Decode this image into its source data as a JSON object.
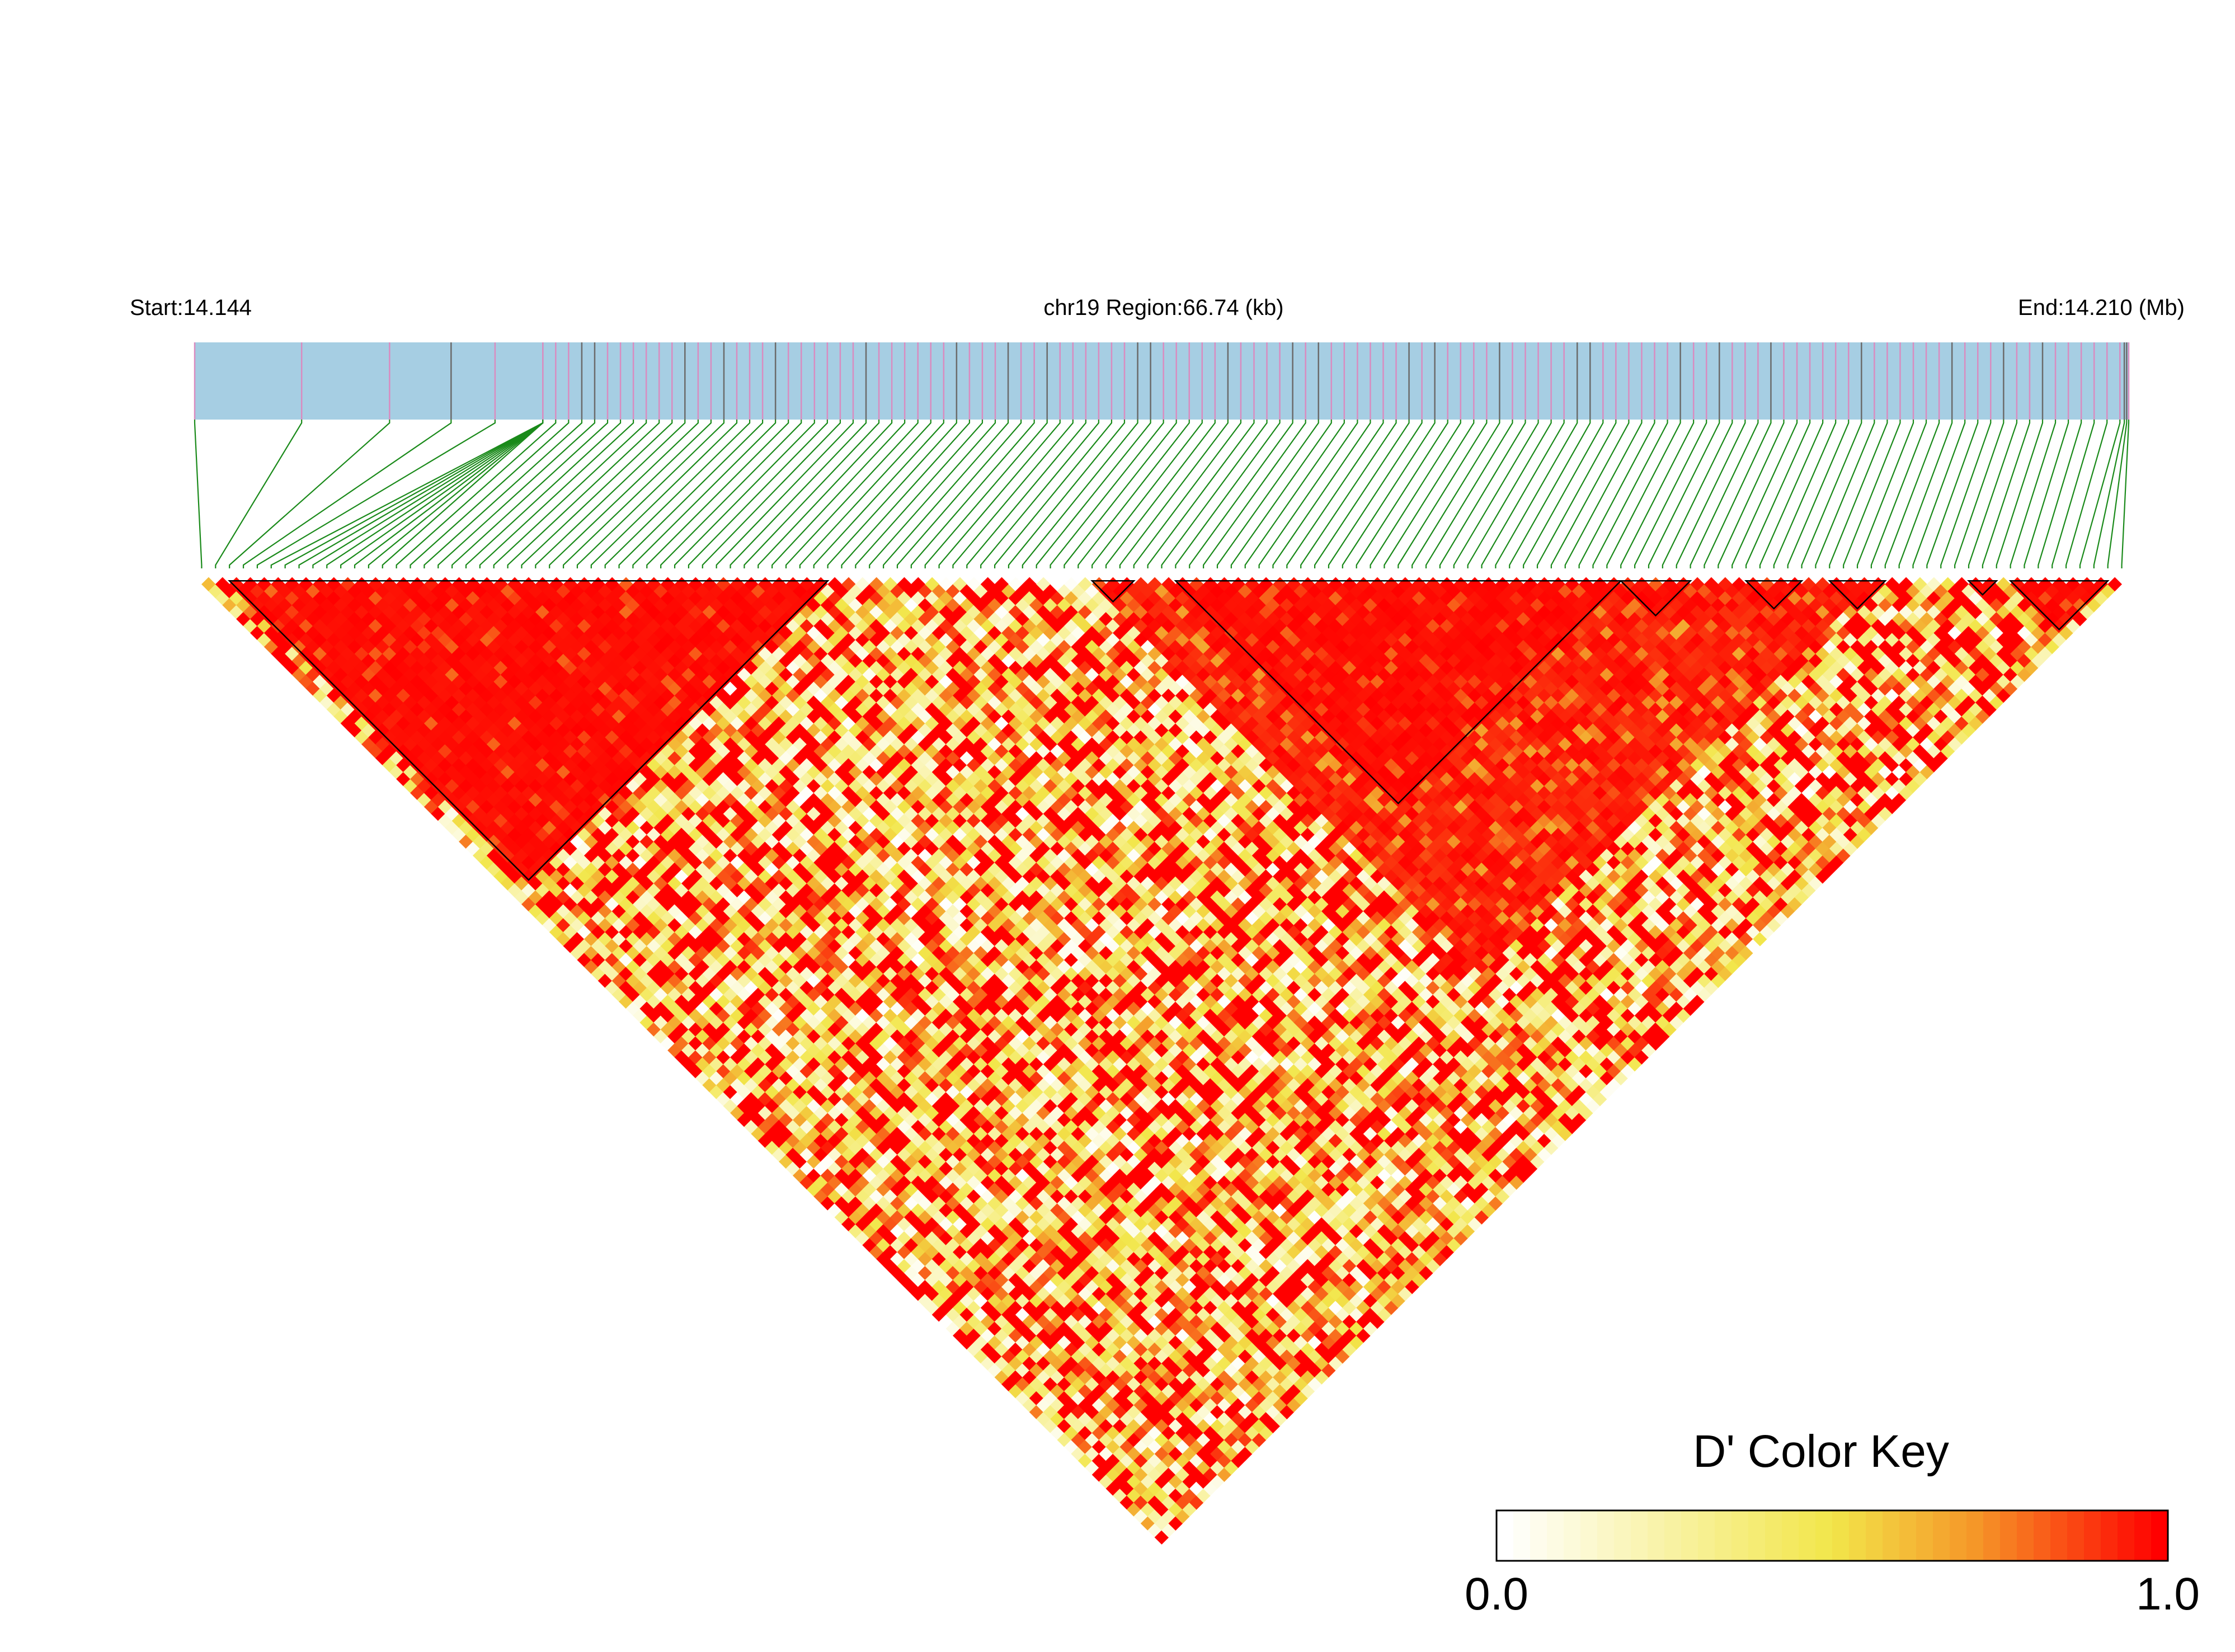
{
  "header": {
    "start_label": "Start:14.144",
    "region_label": "chr19 Region:66.74 (kb)",
    "end_label": "End:14.210 (Mb)"
  },
  "colors": {
    "track_fill": "#a6cee3",
    "snp_tick_pink": "#d98cc0",
    "snp_tick_dark": "#6b6b6b",
    "connector_green": "#1a8a1a",
    "ld_low": "#ffffff",
    "ld_mid": "#f2e64a",
    "ld_high": "#ff0000",
    "block_outline": "#000000"
  },
  "chart_data": {
    "type": "heatmap",
    "title": "",
    "xlabel": "",
    "ylabel": "",
    "chromosome": "chr19",
    "region_start_mb": 14.144,
    "region_end_mb": 14.21,
    "region_size_kb": 66.74,
    "n_snps": 139,
    "snp_positions_mb": [
      14.144,
      14.14765,
      14.15065,
      14.15275,
      14.15425,
      14.15588,
      14.15588,
      14.15588,
      14.15588,
      14.15588,
      14.15588,
      14.15588,
      14.15588,
      14.15588,
      14.15632,
      14.15676,
      14.15721,
      14.15765,
      14.15809,
      14.15853,
      14.15897,
      14.15941,
      14.15985,
      14.16029,
      14.16073,
      14.16118,
      14.16162,
      14.16206,
      14.1625,
      14.16294,
      14.16338,
      14.16382,
      14.16426,
      14.1647,
      14.16515,
      14.16559,
      14.16603,
      14.16647,
      14.16691,
      14.16735,
      14.16779,
      14.16823,
      14.16868,
      14.16912,
      14.16956,
      14.17,
      14.17044,
      14.17088,
      14.17132,
      14.17176,
      14.1722,
      14.17265,
      14.17309,
      14.17353,
      14.17397,
      14.17441,
      14.17485,
      14.17529,
      14.17573,
      14.17618,
      14.17662,
      14.17706,
      14.1775,
      14.17794,
      14.17838,
      14.17882,
      14.17926,
      14.1797,
      14.18015,
      14.18059,
      14.18103,
      14.18147,
      14.18191,
      14.18235,
      14.18279,
      14.18323,
      14.18368,
      14.18412,
      14.18456,
      14.185,
      14.18544,
      14.18588,
      14.18632,
      14.18676,
      14.1872,
      14.18765,
      14.18809,
      14.18853,
      14.18897,
      14.18941,
      14.18985,
      14.19029,
      14.19073,
      14.19118,
      14.19162,
      14.19206,
      14.1925,
      14.19294,
      14.19338,
      14.19382,
      14.19426,
      14.1947,
      14.19515,
      14.19559,
      14.19603,
      14.19647,
      14.19691,
      14.19735,
      14.19779,
      14.19823,
      14.19868,
      14.19912,
      14.19956,
      14.2,
      14.20044,
      14.20088,
      14.20132,
      14.20176,
      14.2022,
      14.20265,
      14.20309,
      14.20353,
      14.20397,
      14.20441,
      14.20485,
      14.20529,
      14.20573,
      14.20618,
      14.20662,
      14.20706,
      14.2075,
      14.20794,
      14.20838,
      14.20882,
      14.20926,
      14.2097,
      14.20985,
      14.20993,
      14.21
    ],
    "ld_blocks": [
      [
        2,
        45
      ],
      [
        64,
        67
      ],
      [
        70,
        102
      ],
      [
        102,
        107
      ],
      [
        111,
        115
      ],
      [
        117,
        121
      ],
      [
        127,
        129
      ],
      [
        130,
        137
      ]
    ],
    "high_ld_region": [
      64,
      120
    ],
    "d_prime_scale": [
      0.0,
      1.0
    ],
    "color_key": {
      "title": "D' Color Key",
      "min_label": "0.0",
      "max_label": "1.0",
      "placement": "bottom-right"
    }
  }
}
